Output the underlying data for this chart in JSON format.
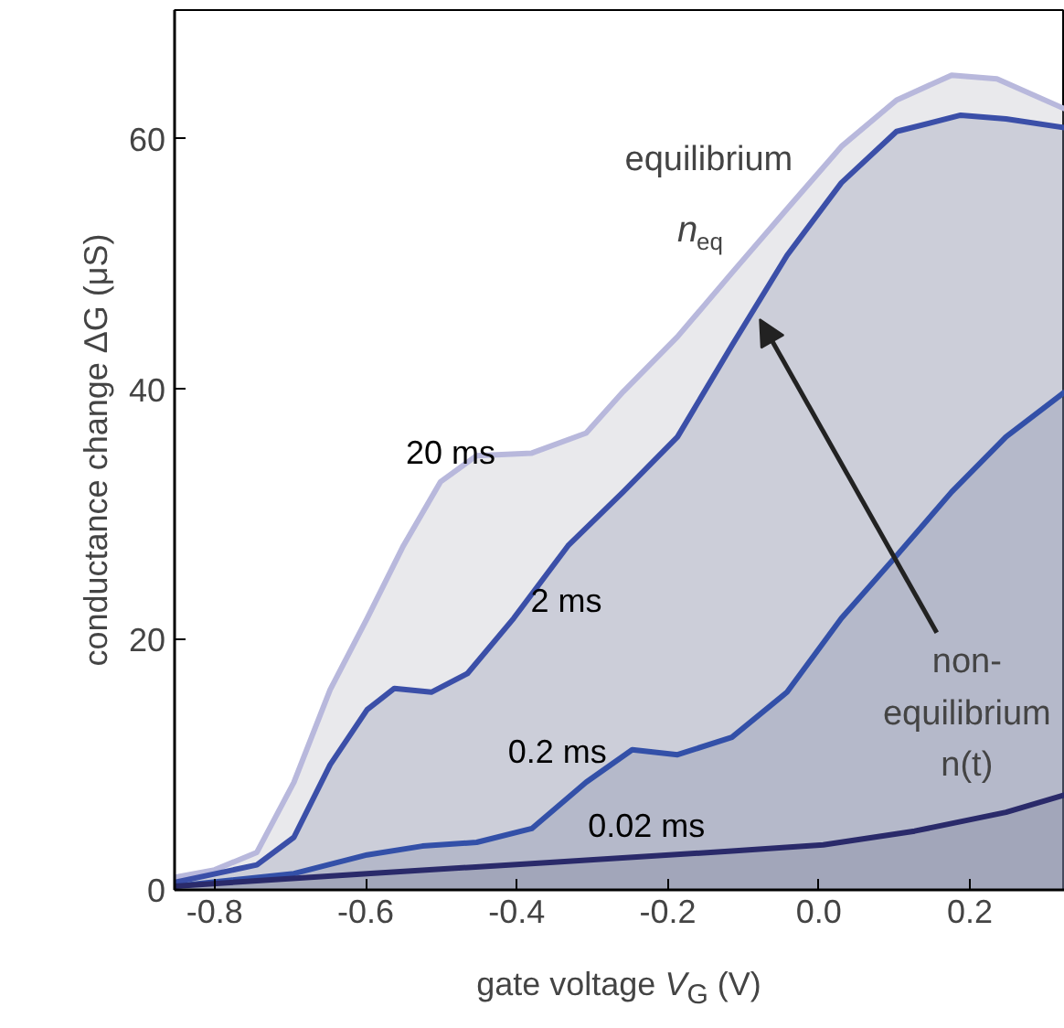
{
  "chart_data": {
    "type": "area",
    "xlabel": "gate voltage V$_{G}$ (V)",
    "ylabel": "conductance change ΔG (μS)",
    "xlim": [
      -0.853,
      0.326
    ],
    "ylim": [
      0,
      70.3
    ],
    "xticks": [
      -0.8,
      -0.6,
      -0.4,
      -0.2,
      {
        "value": 0,
        "label": "0.0"
      },
      0.2
    ],
    "yticks": [
      0,
      20,
      40,
      60
    ],
    "grid": false,
    "legend": false,
    "series": [
      {
        "name": "20 ms",
        "color": "#b8b8dc",
        "x": [
          -0.853,
          -0.8,
          -0.744,
          -0.695,
          -0.647,
          -0.598,
          -0.55,
          -0.501,
          -0.453,
          -0.38,
          -0.308,
          -0.259,
          -0.187,
          -0.115,
          -0.042,
          0.03,
          0.103,
          0.176,
          0.236,
          0.326
        ],
        "values": [
          1,
          1.6,
          3,
          8.6,
          16,
          21.7,
          27.5,
          32.6,
          34.7,
          34.9,
          36.5,
          39.8,
          44.2,
          49.3,
          54.4,
          59.4,
          63.1,
          65.1,
          64.8,
          62.4
        ]
      },
      {
        "name": "2 ms",
        "color": "#3b4fa8",
        "x": [
          -0.853,
          -0.744,
          -0.695,
          -0.647,
          -0.598,
          -0.562,
          -0.513,
          -0.465,
          -0.404,
          -0.332,
          -0.259,
          -0.187,
          -0.115,
          -0.042,
          0.03,
          0.103,
          0.188,
          0.248,
          0.326
        ],
        "values": [
          0.6,
          2,
          4.2,
          10,
          14.4,
          16.1,
          15.8,
          17.3,
          21.7,
          27.5,
          31.8,
          36.2,
          43.5,
          50.7,
          56.5,
          60.6,
          61.9,
          61.6,
          60.9
        ]
      },
      {
        "name": "0.2 ms",
        "color": "#3350a8",
        "x": [
          -0.853,
          -0.695,
          -0.598,
          -0.525,
          -0.453,
          -0.38,
          -0.308,
          -0.247,
          -0.187,
          -0.115,
          -0.042,
          0.03,
          0.103,
          0.176,
          0.248,
          0.326
        ],
        "values": [
          0.3,
          1.3,
          2.8,
          3.5,
          3.8,
          4.9,
          8.6,
          11.2,
          10.8,
          12.2,
          15.8,
          21.7,
          26.7,
          31.8,
          36.2,
          39.8
        ]
      },
      {
        "name": "0.02 ms",
        "color": "#2a2a6a",
        "x": [
          -0.853,
          -0.598,
          -0.356,
          -0.115,
          0.006,
          0.127,
          0.248,
          0.326
        ],
        "values": [
          0.3,
          1.3,
          2.2,
          3.1,
          3.6,
          4.7,
          6.2,
          7.6
        ]
      }
    ],
    "annotations": [
      "equilibrium",
      "n$_{eq}$",
      {
        "text": "non-\nequilibrium\nn(t)",
        "x": -0.078,
        "y": 45.6
      }
    ]
  }
}
